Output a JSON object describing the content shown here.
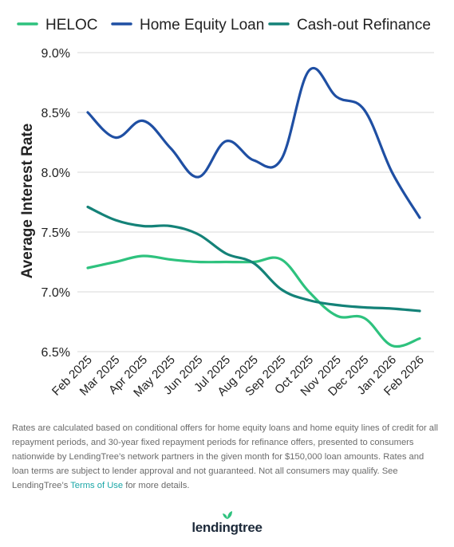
{
  "chart_data": {
    "type": "line",
    "title": "",
    "xlabel": "",
    "ylabel": "Average Interest Rate",
    "categories": [
      "Feb 2025",
      "Mar 2025",
      "Apr 2025",
      "May 2025",
      "Jun 2025",
      "Jul 2025",
      "Aug 2025",
      "Sep 2025",
      "Oct 2025",
      "Nov 2025",
      "Dec 2025",
      "Jan 2026",
      "Feb 2026"
    ],
    "ylim": [
      6.5,
      9.0
    ],
    "yticks": [
      6.5,
      7.0,
      7.5,
      8.0,
      8.5,
      9.0
    ],
    "ytick_labels": [
      "6.5%",
      "7.0%",
      "7.5%",
      "8.0%",
      "8.5%",
      "9.0%"
    ],
    "grid": "horizontal",
    "legend_position": "top",
    "series": [
      {
        "name": "HELOC",
        "color": "#2ec27e",
        "values": [
          7.2,
          7.25,
          7.3,
          7.27,
          7.25,
          7.25,
          7.25,
          7.27,
          7.0,
          6.8,
          6.78,
          6.55,
          6.61
        ]
      },
      {
        "name": "Home Equity Loan",
        "color": "#1f4fa3",
        "values": [
          8.5,
          8.29,
          8.43,
          8.2,
          7.96,
          8.26,
          8.1,
          8.11,
          8.85,
          8.63,
          8.52,
          8.0,
          7.62
        ]
      },
      {
        "name": "Cash-out Refinance",
        "color": "#148278",
        "values": [
          7.71,
          7.6,
          7.55,
          7.55,
          7.48,
          7.32,
          7.24,
          7.02,
          6.93,
          6.89,
          6.87,
          6.86,
          6.84
        ]
      }
    ]
  },
  "footnote": {
    "text_before": "Rates are calculated based on conditional offers for home equity loans and home equity lines of credit for all repayment periods, and 30-year fixed repayment periods for refinance offers, presented to consumers nationwide by LendingTree’s network partners in the given month for $150,000 loan amounts. Rates and loan terms are subject to lender approval and not guaranteed. Not all consumers may qualify. See LendingTree’s ",
    "link": "Terms of Use",
    "text_after": " for more details."
  },
  "logo": {
    "text": "lendingtree",
    "color": "#2ec27e"
  }
}
